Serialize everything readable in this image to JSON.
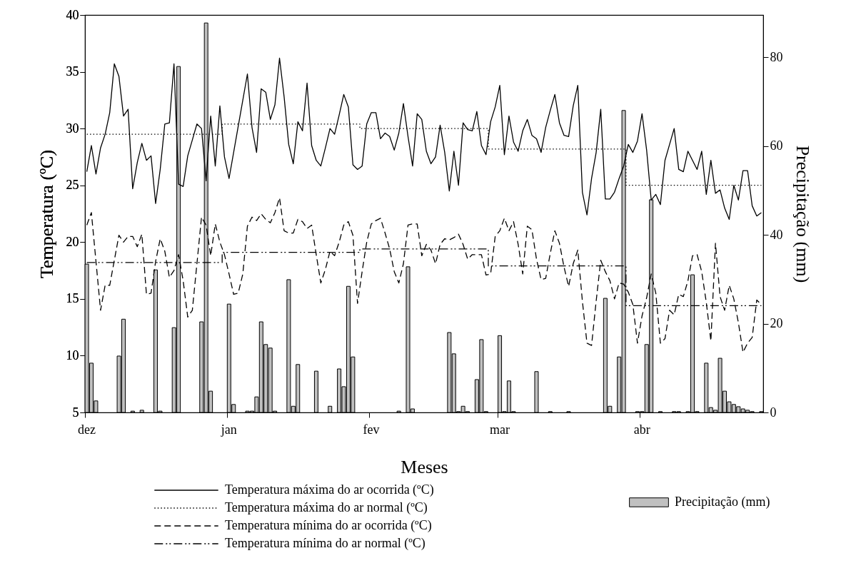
{
  "chart_data": {
    "type": "line",
    "xlabel": "Meses",
    "ylabel": "Temperatura (ºC)",
    "y2label": "Precipitação (mm)",
    "categories": [
      "dez",
      null,
      null,
      null,
      null,
      null,
      null,
      null,
      null,
      null,
      null,
      null,
      null,
      null,
      null,
      null,
      null,
      null,
      null,
      null,
      null,
      null,
      null,
      null,
      null,
      null,
      null,
      null,
      null,
      null,
      null,
      "jan",
      null,
      null,
      null,
      null,
      null,
      null,
      null,
      null,
      null,
      null,
      null,
      null,
      null,
      null,
      null,
      null,
      null,
      null,
      null,
      null,
      null,
      null,
      null,
      null,
      null,
      null,
      null,
      null,
      null,
      null,
      "fev",
      null,
      null,
      null,
      null,
      null,
      null,
      null,
      null,
      null,
      null,
      null,
      null,
      null,
      null,
      null,
      null,
      null,
      null,
      null,
      null,
      null,
      null,
      null,
      null,
      null,
      null,
      null,
      "mar",
      null,
      null,
      null,
      null,
      null,
      null,
      null,
      null,
      null,
      null,
      null,
      null,
      null,
      null,
      null,
      null,
      null,
      null,
      null,
      null,
      null,
      null,
      null,
      null,
      null,
      null,
      null,
      null,
      null,
      null,
      "abr",
      null,
      null,
      null,
      null,
      null,
      null,
      null,
      null,
      null,
      null,
      null,
      null,
      null,
      null,
      null,
      null,
      null,
      null,
      null,
      null,
      null,
      null,
      null,
      null,
      null,
      null
    ],
    "ylim": [
      5,
      40
    ],
    "yticks": [
      5,
      10,
      15,
      20,
      25,
      30,
      35,
      40
    ],
    "y2lim": [
      0,
      89.5
    ],
    "y2ticks": [
      0,
      20,
      40,
      60,
      80
    ],
    "grid": false,
    "legend": "bottom",
    "series": [
      {
        "name": "Temperatura máxima do ar ocorrida (ºC)",
        "type": "line",
        "line_style": "solid",
        "color": "#000000",
        "values": [
          26.2,
          28.5,
          26.0,
          28.3,
          29.5,
          31.4,
          35.7,
          34.6,
          31.1,
          31.7,
          24.7,
          27.0,
          28.7,
          27.2,
          27.6,
          23.4,
          26.4,
          30.4,
          30.5,
          35.7,
          25.1,
          24.9,
          27.6,
          29.0,
          30.4,
          30.0,
          25.4,
          31.1,
          26.7,
          32.0,
          27.5,
          25.6,
          27.9,
          30.2,
          32.5,
          34.8,
          30.1,
          27.9,
          33.5,
          33.2,
          30.8,
          32.1,
          36.2,
          32.8,
          28.6,
          26.9,
          30.6,
          29.8,
          34.0,
          28.5,
          27.2,
          26.7,
          28.3,
          30.0,
          29.5,
          31.2,
          33.0,
          31.9,
          26.8,
          26.4,
          26.7,
          30.4,
          31.4,
          31.4,
          29.1,
          29.6,
          29.3,
          28.1,
          29.6,
          32.2,
          29.3,
          26.7,
          31.3,
          30.8,
          28.0,
          26.9,
          27.5,
          30.3,
          27.9,
          24.5,
          28.0,
          25.0,
          30.5,
          29.9,
          29.8,
          31.5,
          28.5,
          27.7,
          30.6,
          31.9,
          33.8,
          27.7,
          31.1,
          28.8,
          28.0,
          29.8,
          30.8,
          29.4,
          29.1,
          27.9,
          30.1,
          31.6,
          33.0,
          30.5,
          29.4,
          29.3,
          32.0,
          33.8,
          24.4,
          22.4,
          25.6,
          27.9,
          31.7,
          23.8,
          23.8,
          24.4,
          25.6,
          26.7,
          28.6,
          27.9,
          28.9,
          31.3,
          28.1,
          23.7,
          24.2,
          23.3,
          27.2,
          28.6,
          30.0,
          26.4,
          26.2,
          28.0,
          27.2,
          26.4,
          28.0,
          24.2,
          27.2,
          24.3,
          24.6,
          23.0,
          22.0,
          25.0,
          23.7,
          26.3,
          26.3,
          23.2,
          22.3,
          22.6
        ]
      },
      {
        "name": "Temperatura máxima do ar normal (ºC)",
        "type": "step",
        "line_style": "dotted",
        "color": "#000000",
        "values": [
          29.5,
          29.5,
          29.5,
          29.5,
          29.5,
          29.5,
          29.5,
          29.5,
          29.5,
          29.5,
          29.5,
          29.5,
          29.5,
          29.5,
          29.5,
          29.5,
          29.5,
          29.5,
          29.5,
          29.5,
          29.5,
          29.5,
          29.5,
          29.5,
          29.5,
          29.5,
          29.5,
          29.5,
          29.5,
          29.5,
          30.4,
          30.4,
          30.4,
          30.4,
          30.4,
          30.4,
          30.4,
          30.4,
          30.4,
          30.4,
          30.4,
          30.4,
          30.4,
          30.4,
          30.4,
          30.4,
          30.4,
          30.4,
          30.4,
          30.4,
          30.4,
          30.4,
          30.4,
          30.4,
          30.4,
          30.4,
          30.4,
          30.4,
          30.4,
          30.4,
          30.0,
          30.0,
          30.0,
          30.0,
          30.0,
          30.0,
          30.0,
          30.0,
          30.0,
          30.0,
          30.0,
          30.0,
          30.0,
          30.0,
          30.0,
          30.0,
          30.0,
          30.0,
          30.0,
          30.0,
          30.0,
          30.0,
          30.0,
          30.0,
          30.0,
          30.0,
          30.0,
          30.0,
          28.2,
          28.2,
          28.2,
          28.2,
          28.2,
          28.2,
          28.2,
          28.2,
          28.2,
          28.2,
          28.2,
          28.2,
          28.2,
          28.2,
          28.2,
          28.2,
          28.2,
          28.2,
          28.2,
          28.2,
          28.2,
          28.2,
          28.2,
          28.2,
          28.2,
          28.2,
          28.2,
          28.2,
          28.2,
          28.2,
          25.0,
          25.0,
          25.0,
          25.0,
          25.0,
          25.0,
          25.0,
          25.0,
          25.0,
          25.0,
          25.0,
          25.0,
          25.0,
          25.0,
          25.0,
          25.0,
          25.0,
          25.0,
          25.0,
          25.0,
          25.0,
          25.0,
          25.0,
          25.0,
          25.0,
          25.0,
          25.0,
          25.0,
          25.0,
          25.0
        ]
      },
      {
        "name": "Temperatura mínima do ar ocorrida (ºC)",
        "type": "line",
        "line_style": "dashed",
        "color": "#000000",
        "values": [
          21.5,
          22.6,
          18.3,
          14.0,
          16.2,
          16.2,
          18.4,
          20.6,
          20.0,
          20.5,
          20.5,
          19.6,
          20.7,
          15.4,
          15.5,
          18.3,
          20.3,
          19.2,
          16.9,
          17.5,
          18.9,
          16.6,
          13.4,
          14.0,
          18.1,
          22.2,
          21.5,
          18.8,
          21.6,
          20.0,
          18.9,
          17.2,
          15.4,
          15.5,
          17.2,
          21.4,
          22.2,
          21.9,
          22.5,
          22.0,
          21.7,
          22.6,
          23.9,
          21.0,
          20.8,
          20.8,
          22.0,
          21.8,
          21.2,
          21.5,
          18.9,
          16.4,
          17.6,
          19.2,
          18.8,
          20.0,
          21.5,
          21.8,
          20.6,
          14.6,
          17.4,
          20.0,
          21.6,
          21.9,
          22.1,
          20.8,
          19.4,
          17.4,
          16.4,
          18.1,
          21.5,
          21.6,
          21.6,
          18.8,
          19.8,
          19.3,
          18.1,
          19.8,
          20.3,
          20.2,
          20.4,
          20.7,
          19.8,
          18.5,
          18.9,
          18.9,
          18.9,
          17.1,
          17.2,
          20.5,
          21.0,
          22.1,
          21.0,
          21.8,
          19.8,
          17.2,
          21.4,
          21.1,
          18.5,
          16.7,
          16.8,
          19.0,
          21.0,
          19.9,
          17.8,
          16.1,
          18.1,
          19.3,
          14.8,
          11.1,
          10.9,
          14.8,
          18.4,
          17.4,
          16.6,
          15.0,
          16.4,
          16.3,
          15.6,
          14.5,
          11.1,
          13.5,
          15.1,
          17.2,
          15.5,
          11.1,
          11.5,
          14.0,
          13.6,
          15.4,
          15.2,
          16.6,
          18.8,
          18.9,
          17.4,
          14.7,
          11.3,
          19.9,
          15.2,
          14.0,
          16.2,
          15.0,
          12.9,
          10.3,
          11.1,
          11.6,
          14.9,
          14.5
        ]
      },
      {
        "name": "Temperatura mínima do ar normal (ºC)",
        "type": "step",
        "line_style": "dashdot",
        "color": "#000000",
        "values": [
          18.2,
          18.2,
          18.2,
          18.2,
          18.2,
          18.2,
          18.2,
          18.2,
          18.2,
          18.2,
          18.2,
          18.2,
          18.2,
          18.2,
          18.2,
          18.2,
          18.2,
          18.2,
          18.2,
          18.2,
          18.2,
          18.2,
          18.2,
          18.2,
          18.2,
          18.2,
          18.2,
          18.2,
          18.2,
          18.2,
          19.1,
          19.1,
          19.1,
          19.1,
          19.1,
          19.1,
          19.1,
          19.1,
          19.1,
          19.1,
          19.1,
          19.1,
          19.1,
          19.1,
          19.1,
          19.1,
          19.1,
          19.1,
          19.1,
          19.1,
          19.1,
          19.1,
          19.1,
          19.1,
          19.1,
          19.1,
          19.1,
          19.1,
          19.1,
          19.1,
          19.4,
          19.4,
          19.4,
          19.4,
          19.4,
          19.4,
          19.4,
          19.4,
          19.4,
          19.4,
          19.4,
          19.4,
          19.4,
          19.4,
          19.4,
          19.4,
          19.4,
          19.4,
          19.4,
          19.4,
          19.4,
          19.4,
          19.4,
          19.4,
          19.4,
          19.4,
          19.4,
          19.4,
          17.9,
          17.9,
          17.9,
          17.9,
          17.9,
          17.9,
          17.9,
          17.9,
          17.9,
          17.9,
          17.9,
          17.9,
          17.9,
          17.9,
          17.9,
          17.9,
          17.9,
          17.9,
          17.9,
          17.9,
          17.9,
          17.9,
          17.9,
          17.9,
          17.9,
          17.9,
          17.9,
          17.9,
          17.9,
          17.9,
          14.4,
          14.4,
          14.4,
          14.4,
          14.4,
          14.4,
          14.4,
          14.4,
          14.4,
          14.4,
          14.4,
          14.4,
          14.4,
          14.4,
          14.4,
          14.4,
          14.4,
          14.4,
          14.4,
          14.4,
          14.4,
          14.4,
          14.4,
          14.4,
          14.4,
          14.4,
          14.4,
          14.4,
          14.4,
          14.4
        ]
      },
      {
        "name": "Precipitação (mm)",
        "type": "bar",
        "axis": "y2",
        "color": "#c0c0c0",
        "values": [
          33.4,
          11.1,
          2.6,
          null,
          null,
          null,
          null,
          12.7,
          21.0,
          null,
          0.3,
          null,
          0.5,
          null,
          null,
          32.1,
          0.3,
          null,
          null,
          19.1,
          77.9,
          null,
          null,
          null,
          null,
          20.4,
          87.7,
          4.8,
          null,
          null,
          null,
          24.4,
          1.8,
          null,
          null,
          0.3,
          0.3,
          3.5,
          20.4,
          15.3,
          14.5,
          0.3,
          null,
          null,
          29.9,
          1.4,
          10.8,
          null,
          null,
          null,
          9.3,
          null,
          null,
          1.4,
          null,
          9.8,
          5.8,
          28.4,
          12.5,
          null,
          null,
          null,
          null,
          null,
          null,
          null,
          null,
          null,
          0.3,
          null,
          32.8,
          0.8,
          null,
          null,
          null,
          null,
          null,
          null,
          null,
          18.0,
          13.2,
          0.2,
          1.4,
          0.2,
          null,
          7.4,
          16.4,
          0.2,
          null,
          null,
          17.3,
          0.2,
          7.1,
          0.2,
          null,
          null,
          null,
          null,
          9.2,
          null,
          null,
          0.2,
          null,
          null,
          null,
          0.2,
          null,
          null,
          null,
          null,
          null,
          null,
          null,
          25.7,
          1.4,
          null,
          12.5,
          68.0,
          null,
          null,
          0.2,
          0.2,
          15.3,
          47.9,
          null,
          0.2,
          null,
          null,
          0.2,
          0.2,
          null,
          0.2,
          31.0,
          0.2,
          null,
          11.1,
          1.1,
          0.5,
          12.2,
          4.8,
          2.4,
          1.8,
          1.3,
          0.8,
          0.5,
          0.2,
          null,
          0.2
        ]
      }
    ]
  }
}
